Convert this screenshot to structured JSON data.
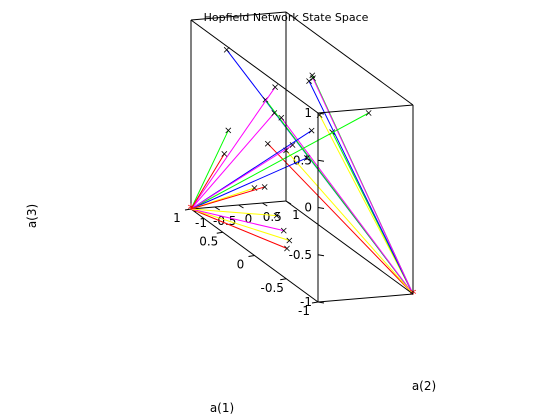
{
  "chart_data": {
    "type": "line",
    "projection": "3d",
    "title": "Hopfield Network State Space",
    "xlabel": "a(1)",
    "ylabel": "a(2)",
    "zlabel": "a(3)",
    "xlim": [
      -1,
      1
    ],
    "ylim": [
      -1,
      1
    ],
    "zlim": [
      -1,
      1
    ],
    "xticks": [
      "-1",
      "-0.5",
      "0",
      "0.5",
      "1"
    ],
    "yticks": [
      "-1",
      "-0.5",
      "0",
      "0.5",
      "1"
    ],
    "zticks": [
      "-1",
      "-0.5",
      "0",
      "0.5",
      "1"
    ],
    "grid": false,
    "box": true,
    "marker_start": "x",
    "marker_end": "*",
    "attractors": [
      [
        1,
        -1,
        -1
      ],
      [
        -1,
        1,
        -1
      ]
    ],
    "trajectories": [
      {
        "color": "#ffff00",
        "start": [
          -0.95,
          -0.9,
          0.95
        ],
        "end": [
          -1,
          1,
          -1
        ]
      },
      {
        "color": "#00ff00",
        "start": [
          -0.7,
          -0.3,
          0.62
        ],
        "end": [
          -1,
          1,
          -1
        ]
      },
      {
        "color": "#0000ff",
        "start": [
          0.55,
          -0.85,
          0.9
        ],
        "end": [
          -1,
          1,
          -1
        ]
      },
      {
        "color": "#00ff00",
        "start": [
          0.1,
          0.35,
          0.8
        ],
        "end": [
          -1,
          1,
          -1
        ]
      },
      {
        "color": "#0000ff",
        "start": [
          0.45,
          0.75,
          0.55
        ],
        "end": [
          -1,
          1,
          -1
        ]
      },
      {
        "color": "#ff00ff",
        "start": [
          0.5,
          0.9,
          0.55
        ],
        "end": [
          -1,
          1,
          -1
        ]
      },
      {
        "color": "#00ff00",
        "start": [
          0.8,
          0.3,
          0.2
        ],
        "end": [
          -1,
          1,
          -1
        ]
      },
      {
        "color": "#ff00ff",
        "start": [
          0.7,
          0.5,
          0.05
        ],
        "end": [
          -1,
          1,
          -1
        ]
      },
      {
        "color": "#ff0000",
        "start": [
          0.95,
          0.55,
          -0.35
        ],
        "end": [
          -1,
          1,
          -1
        ]
      },
      {
        "color": "#ffff00",
        "start": [
          0.7,
          0.6,
          -0.3
        ],
        "end": [
          -1,
          1,
          -1
        ]
      },
      {
        "color": "#ff00ff",
        "start": [
          -0.25,
          -0.9,
          0.9
        ],
        "end": [
          1,
          -1,
          -1
        ]
      },
      {
        "color": "#ff00ff",
        "start": [
          -0.2,
          -0.85,
          0.6
        ],
        "end": [
          1,
          -1,
          -1
        ]
      },
      {
        "color": "#0000ff",
        "start": [
          -0.6,
          -0.6,
          0.6
        ],
        "end": [
          1,
          -1,
          -1
        ]
      },
      {
        "color": "#00ff00",
        "start": [
          -0.9,
          0.2,
          0.9
        ],
        "end": [
          1,
          -1,
          -1
        ]
      },
      {
        "color": "#ff00ff",
        "start": [
          -0.3,
          -0.6,
          0.3
        ],
        "end": [
          1,
          -1,
          -1
        ]
      },
      {
        "color": "#0000ff",
        "start": [
          -0.3,
          -0.3,
          0.15
        ],
        "end": [
          1,
          -1,
          -1
        ]
      },
      {
        "color": "#00ff00",
        "start": [
          0.45,
          -0.95,
          0.1
        ],
        "end": [
          1,
          -1,
          -1
        ]
      },
      {
        "color": "#ff0000",
        "start": [
          0.55,
          -0.9,
          -0.2
        ],
        "end": [
          1,
          -1,
          -1
        ]
      },
      {
        "color": "#ffff00",
        "start": [
          0.3,
          -0.6,
          -0.45
        ],
        "end": [
          1,
          -1,
          -1
        ]
      },
      {
        "color": "#ff0000",
        "start": [
          -0.1,
          -0.45,
          -0.9
        ],
        "end": [
          1,
          -1,
          -1
        ]
      },
      {
        "color": "#ffff00",
        "start": [
          0.05,
          -0.2,
          -0.9
        ],
        "end": [
          1,
          -1,
          -1
        ]
      },
      {
        "color": "#ff00ff",
        "start": [
          0.25,
          -0.05,
          -0.9
        ],
        "end": [
          1,
          -1,
          -1
        ]
      },
      {
        "color": "#ffff00",
        "start": [
          0.55,
          0.2,
          -0.9
        ],
        "end": [
          1,
          -1,
          -1
        ]
      },
      {
        "color": "#ff0000",
        "start": [
          0.85,
          0.35,
          -0.75
        ],
        "end": [
          1,
          -1,
          -1
        ]
      }
    ]
  }
}
